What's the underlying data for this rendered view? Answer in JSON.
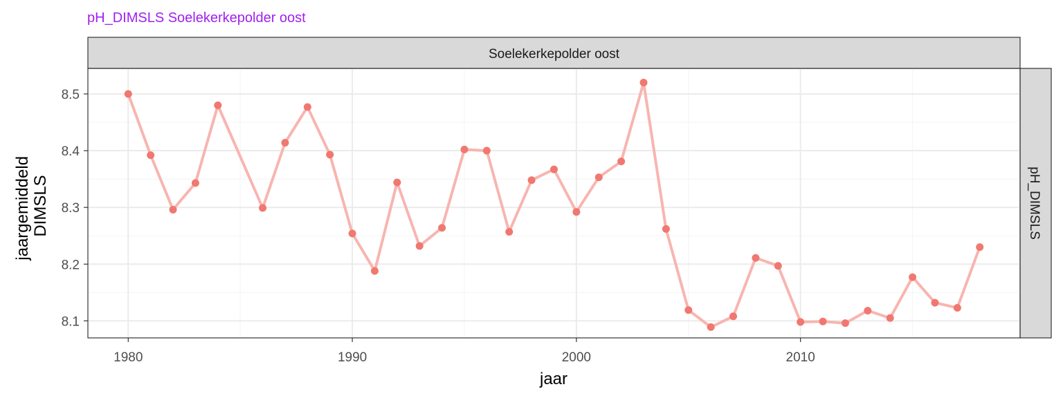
{
  "chart_data": {
    "type": "line",
    "title": "pH_DIMSLS Soelekerkepolder oost",
    "facet_col_label": "Soelekerkepolder oost",
    "facet_row_label": "pH_DIMSLS",
    "xlabel": "jaar",
    "ylabel_lines": [
      "jaargemiddeld",
      "DIMSLS"
    ],
    "xlim": [
      1978.2,
      2019.8
    ],
    "ylim": [
      8.07,
      8.545
    ],
    "x_ticks": [
      1980,
      1990,
      2000,
      2010
    ],
    "y_ticks": [
      8.1,
      8.2,
      8.3,
      8.4,
      8.5
    ],
    "y_tick_labels": [
      "8.1",
      "8.2",
      "8.3",
      "8.4",
      "8.5"
    ],
    "grid": true,
    "x": [
      1980,
      1981,
      1982,
      1983,
      1984,
      1986,
      1987,
      1988,
      1989,
      1990,
      1991,
      1992,
      1993,
      1994,
      1995,
      1996,
      1997,
      1998,
      1999,
      2000,
      2001,
      2002,
      2003,
      2004,
      2005,
      2006,
      2007,
      2008,
      2009,
      2010,
      2011,
      2012,
      2013,
      2014,
      2015,
      2016,
      2017,
      2018
    ],
    "y": [
      8.5,
      8.392,
      8.296,
      8.343,
      8.48,
      8.299,
      8.414,
      8.477,
      8.393,
      8.254,
      8.188,
      8.344,
      8.232,
      8.264,
      8.402,
      8.4,
      8.257,
      8.348,
      8.367,
      8.292,
      8.353,
      8.381,
      8.52,
      8.262,
      8.119,
      8.089,
      8.108,
      8.211,
      8.197,
      8.098,
      8.099,
      8.096,
      8.118,
      8.105,
      8.177,
      8.132,
      8.123,
      8.23
    ]
  },
  "colors": {
    "title": "#a020f0",
    "line": "#f8b5b0",
    "point": "#f07870",
    "strip_fill": "#d9d9d9",
    "grid_major": "#ebebeb",
    "grid_minor": "#f5f5f5",
    "panel_border": "#333333"
  }
}
